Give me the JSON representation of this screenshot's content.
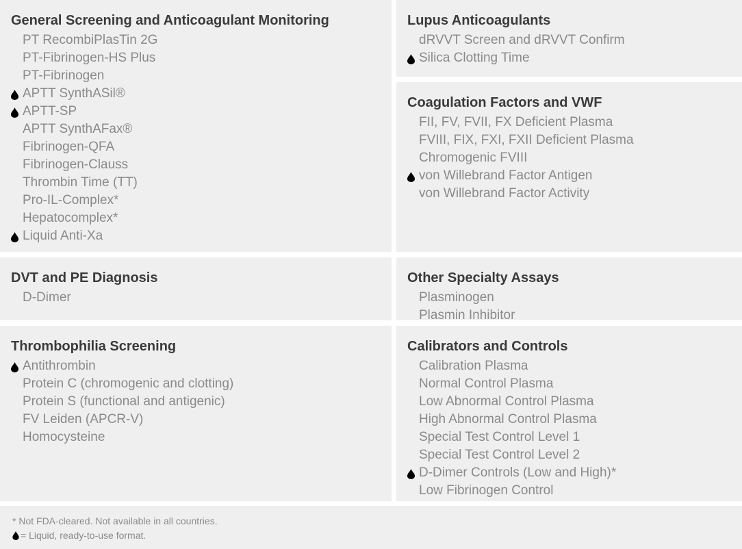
{
  "panels": [
    {
      "id": "general",
      "title": "General Screening and Anticoagulant Monitoring",
      "items": [
        {
          "label": "PT RecombiPlasTin 2G",
          "liquid": false
        },
        {
          "label": "PT-Fibrinogen-HS Plus",
          "liquid": false
        },
        {
          "label": "PT-Fibrinogen",
          "liquid": false
        },
        {
          "label": "APTT SynthASil®",
          "liquid": true
        },
        {
          "label": "APTT-SP",
          "liquid": true
        },
        {
          "label": "APTT SynthAFax®",
          "liquid": false
        },
        {
          "label": "Fibrinogen-QFA",
          "liquid": false
        },
        {
          "label": "Fibrinogen-Clauss",
          "liquid": false
        },
        {
          "label": "Thrombin Time (TT)",
          "liquid": false
        },
        {
          "label": "Pro-IL-Complex*",
          "liquid": false
        },
        {
          "label": "Hepatocomplex*",
          "liquid": false
        },
        {
          "label": "Liquid Anti-Xa",
          "liquid": true
        }
      ]
    },
    {
      "id": "lupus",
      "title": "Lupus Anticoagulants",
      "items": [
        {
          "label": "dRVVT Screen and dRVVT Confirm",
          "liquid": false
        },
        {
          "label": "Silica Clotting Time",
          "liquid": true
        }
      ]
    },
    {
      "id": "coag",
      "title": "Coagulation Factors and VWF",
      "items": [
        {
          "label": "FII, FV, FVII, FX Deficient Plasma",
          "liquid": false
        },
        {
          "label": "FVIII, FIX, FXI, FXII Deficient Plasma",
          "liquid": false
        },
        {
          "label": "Chromogenic FVIII",
          "liquid": false
        },
        {
          "label": "von Willebrand Factor Antigen",
          "liquid": true
        },
        {
          "label": "von Willebrand Factor Activity",
          "liquid": false
        }
      ]
    },
    {
      "id": "dvt",
      "title": "DVT and PE Diagnosis",
      "items": [
        {
          "label": "D-Dimer",
          "liquid": false
        }
      ]
    },
    {
      "id": "other",
      "title": "Other Specialty Assays",
      "items": [
        {
          "label": "Plasminogen",
          "liquid": false
        },
        {
          "label": "Plasmin Inhibitor",
          "liquid": false
        }
      ]
    },
    {
      "id": "thrombo",
      "title": "Thrombophilia Screening",
      "items": [
        {
          "label": "Antithrombin",
          "liquid": true
        },
        {
          "label": "Protein C (chromogenic and clotting)",
          "liquid": false
        },
        {
          "label": "Protein S (functional and antigenic)",
          "liquid": false
        },
        {
          "label": "FV Leiden (APCR-V)",
          "liquid": false
        },
        {
          "label": "Homocysteine",
          "liquid": false
        }
      ]
    },
    {
      "id": "calib",
      "title": "Calibrators and Controls",
      "items": [
        {
          "label": "Calibration Plasma",
          "liquid": false
        },
        {
          "label": "Normal Control Plasma",
          "liquid": false
        },
        {
          "label": "Low Abnormal Control Plasma",
          "liquid": false
        },
        {
          "label": "High Abnormal Control Plasma",
          "liquid": false
        },
        {
          "label": "Special Test Control Level 1",
          "liquid": false
        },
        {
          "label": "Special Test Control Level 2",
          "liquid": false
        },
        {
          "label": "D-Dimer Controls (Low and High)*",
          "liquid": true
        },
        {
          "label": "Low Fibrinogen Control",
          "liquid": false
        }
      ]
    }
  ],
  "footer": {
    "note": "* Not FDA-cleared. Not available in all countries.",
    "legend": "= Liquid, ready-to-use format.",
    "legend_icon": "liquid-drop-icon"
  },
  "colors": {
    "panel_bg": "#efefef",
    "heading": "#3a3a3a",
    "text": "#8a8a8a",
    "drop": "#000000"
  }
}
